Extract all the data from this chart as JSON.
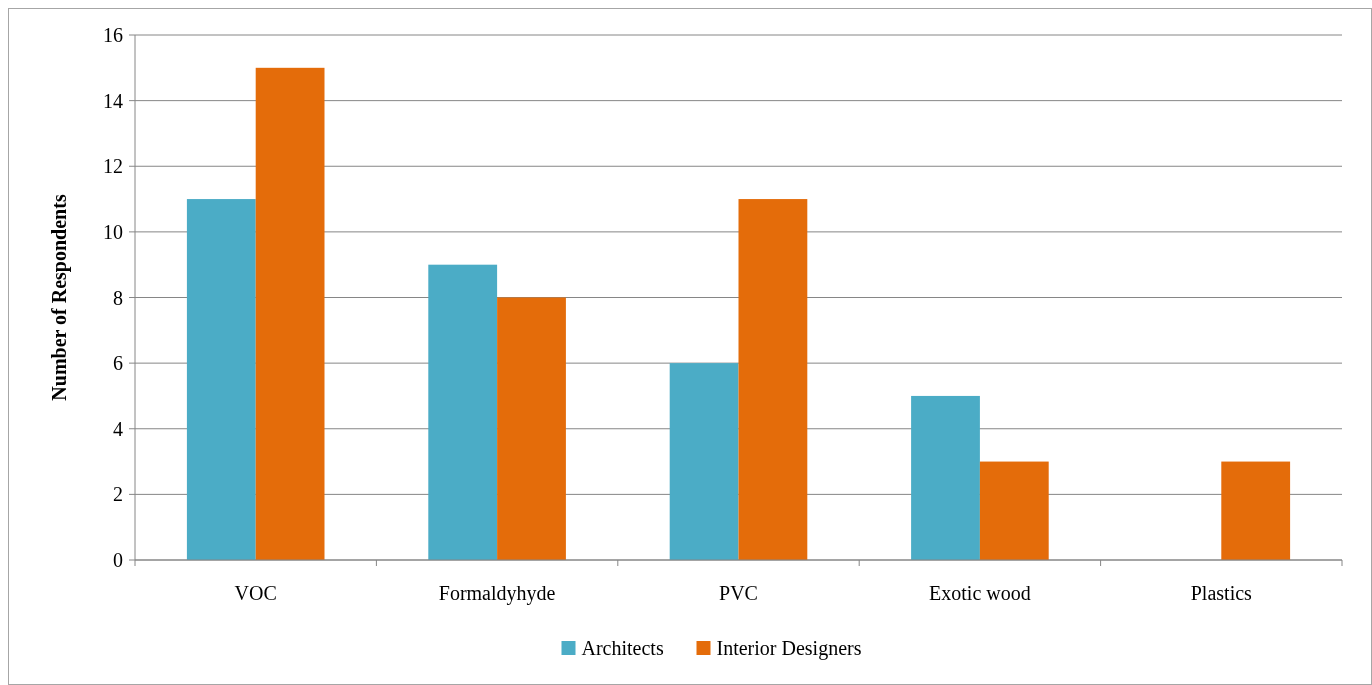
{
  "chart_data": {
    "type": "bar",
    "ylabel": "Number of Respondents",
    "categories": [
      "VOC",
      "Formaldyhyde",
      "PVC",
      "Exotic wood",
      "Plastics"
    ],
    "series": [
      {
        "name": "Architects",
        "color": "#4bacc6",
        "values": [
          11,
          9,
          6,
          5,
          0
        ]
      },
      {
        "name": "Interior Designers",
        "color": "#e46c0a",
        "values": [
          15,
          8,
          11,
          3,
          3
        ]
      }
    ],
    "ylim": [
      0,
      16
    ],
    "yticks": [
      0,
      2,
      4,
      6,
      8,
      10,
      12,
      14,
      16
    ],
    "grid": "y",
    "legend": "bottom"
  }
}
